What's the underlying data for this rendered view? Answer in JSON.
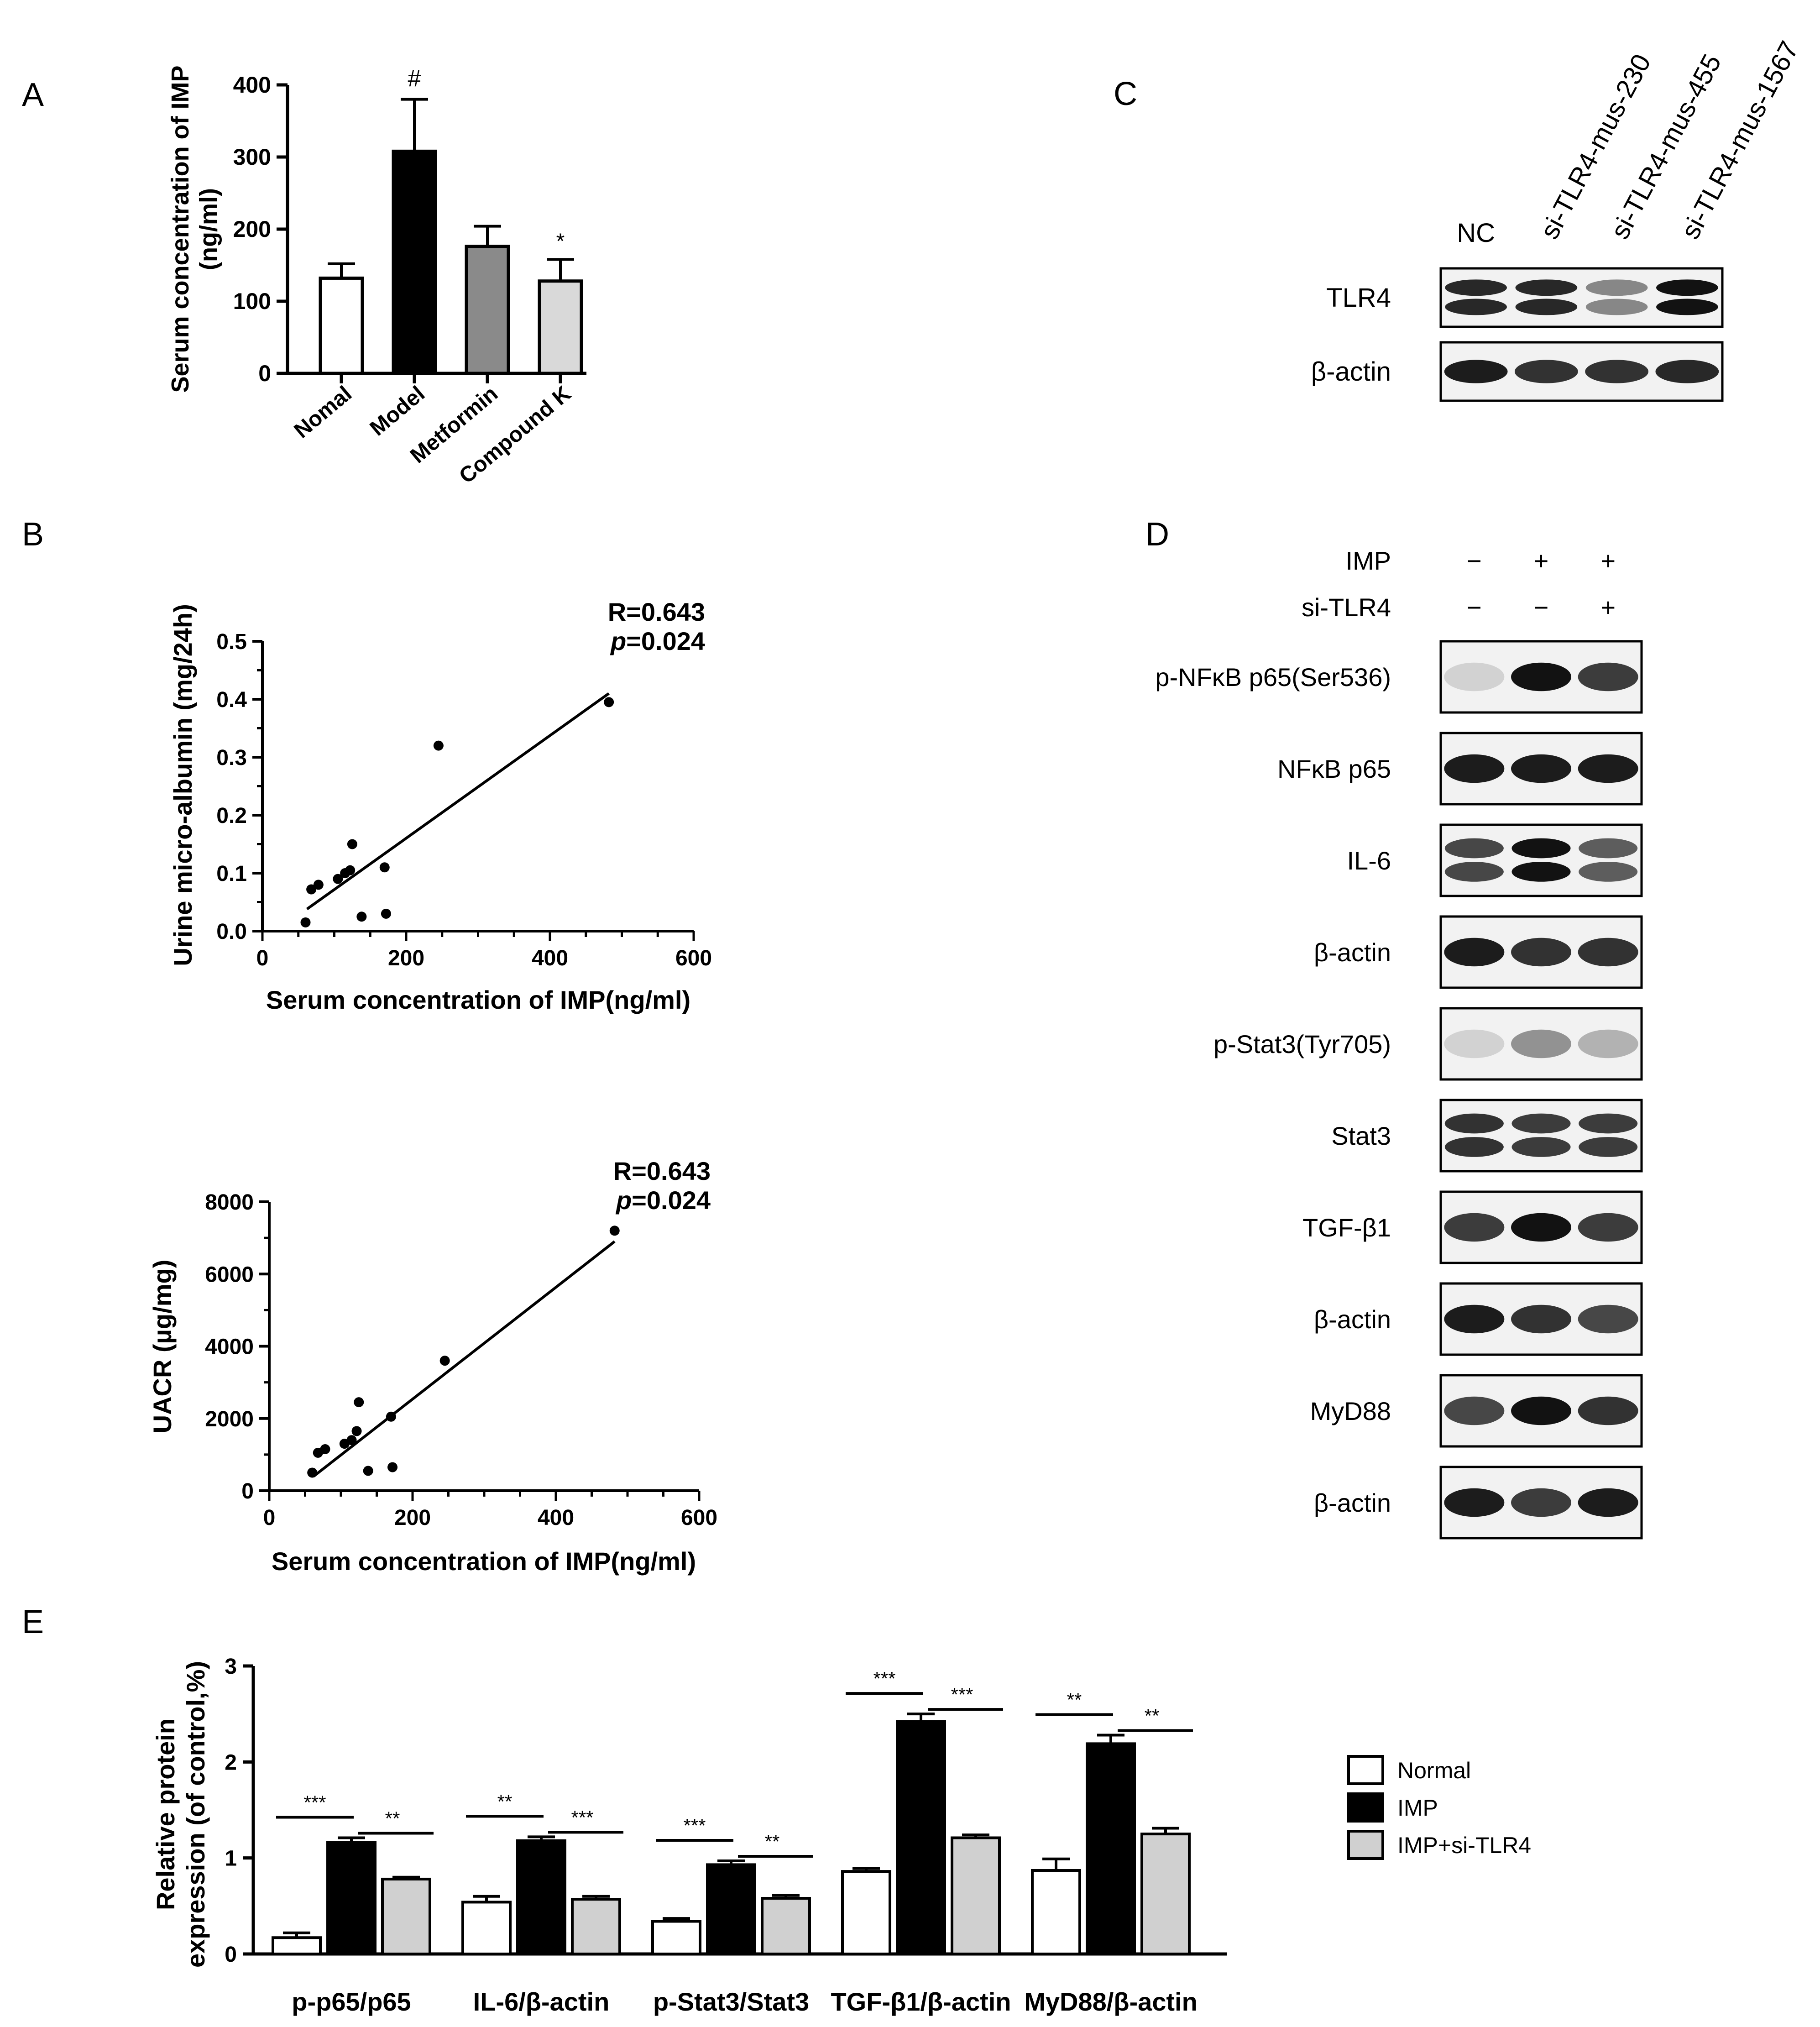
{
  "panel_labels": {
    "A": "A",
    "B": "B",
    "C": "C",
    "D": "D",
    "E": "E"
  },
  "chart_data": [
    {
      "id": "A",
      "type": "bar",
      "categories": [
        "Nomal",
        "Model",
        "Metformin",
        "Compound K"
      ],
      "values": [
        132,
        308,
        176,
        128
      ],
      "errors": [
        20,
        72,
        28,
        30
      ],
      "colors": [
        "#ffffff",
        "#000000",
        "#8a8a8a",
        "#d9d9d9"
      ],
      "significance": [
        "",
        "#",
        "",
        "*"
      ],
      "ylabel": "Serum concentration of IMP",
      "ylabel2": "(ng/ml)",
      "ylim": [
        0,
        400
      ],
      "yticks": [
        0,
        100,
        200,
        300,
        400
      ]
    },
    {
      "id": "B1",
      "type": "scatter",
      "x": [
        60,
        68,
        78,
        105,
        115,
        122,
        125,
        138,
        170,
        172,
        245,
        482
      ],
      "y": [
        0.015,
        0.072,
        0.08,
        0.09,
        0.1,
        0.105,
        0.15,
        0.025,
        0.11,
        0.03,
        0.32,
        0.395
      ],
      "fit": [
        [
          62,
          0.038
        ],
        [
          482,
          0.41
        ]
      ],
      "xlabel": "Serum concentration of IMP(ng/ml)",
      "ylabel": "Urine micro-albumin (mg/24h)",
      "xlim": [
        0,
        600
      ],
      "ylim": [
        0,
        0.5
      ],
      "xticks": [
        0,
        200,
        400,
        600
      ],
      "xtick_labels": [
        "0",
        "200",
        "400",
        "600"
      ],
      "yticks": [
        0,
        0.1,
        0.2,
        0.3,
        0.4,
        0.5
      ],
      "ytick_labels": [
        "0.0",
        "0.1",
        "0.2",
        "0.3",
        "0.4",
        "0.5"
      ],
      "annotation_r": "R=0.643",
      "annotation_p_label": "p",
      "annotation_p_value": "=0.024"
    },
    {
      "id": "B2",
      "type": "scatter",
      "x": [
        60,
        68,
        78,
        105,
        115,
        122,
        125,
        138,
        170,
        172,
        245,
        482
      ],
      "y": [
        500,
        1050,
        1150,
        1300,
        1400,
        1650,
        2450,
        550,
        2050,
        650,
        3600,
        7200
      ],
      "fit": [
        [
          62,
          400
        ],
        [
          482,
          6900
        ]
      ],
      "xlabel": "Serum concentration of IMP(ng/ml)",
      "ylabel": "UACR (µg/mg)",
      "xlim": [
        0,
        600
      ],
      "ylim": [
        0,
        8000
      ],
      "xticks": [
        0,
        200,
        400,
        600
      ],
      "xtick_labels": [
        "0",
        "200",
        "400",
        "600"
      ],
      "yticks": [
        0,
        2000,
        4000,
        6000,
        8000
      ],
      "ytick_labels": [
        "0",
        "2000",
        "4000",
        "6000",
        "8000"
      ],
      "annotation_r": "R=0.643",
      "annotation_p_label": "p",
      "annotation_p_value": "=0.024"
    },
    {
      "id": "E",
      "type": "bar",
      "categories": [
        "p-p65/p65",
        "IL-6/β-actin",
        "p-Stat3/Stat3",
        "TGF-β1/β-actin",
        "MyD88/β-actin"
      ],
      "series": [
        {
          "name": "Normal",
          "color": "#ffffff",
          "values": [
            0.17,
            0.54,
            0.34,
            0.86,
            0.87
          ],
          "errors": [
            0.05,
            0.06,
            0.03,
            0.03,
            0.12
          ]
        },
        {
          "name": "IMP",
          "color": "#000000",
          "values": [
            1.16,
            1.18,
            0.93,
            2.42,
            2.19
          ],
          "errors": [
            0.05,
            0.04,
            0.04,
            0.08,
            0.09
          ]
        },
        {
          "name": "IMP+si-TLR4",
          "color": "#d0d0d0",
          "values": [
            0.78,
            0.57,
            0.58,
            1.21,
            1.25
          ],
          "errors": [
            0.02,
            0.03,
            0.03,
            0.03,
            0.06
          ]
        }
      ],
      "significance": [
        [
          "***",
          "**"
        ],
        [
          "**",
          "***"
        ],
        [
          "***",
          "**"
        ],
        [
          "***",
          "***"
        ],
        [
          "**",
          "**"
        ]
      ],
      "ylabel": "Relative protein",
      "ylabel2": "expression (of control,%)",
      "ylim": [
        0,
        3
      ],
      "yticks": [
        0,
        1,
        2,
        3
      ]
    }
  ],
  "blot_c": {
    "lane_labels": [
      "NC",
      "si-TLR4-mus-230",
      "si-TLR4-mus-455",
      "si-TLR4-mus-1567"
    ],
    "rows": [
      {
        "label": "TLR4",
        "intensity": [
          0.9,
          0.9,
          0.45,
          1.0
        ],
        "double": true
      },
      {
        "label": "β-actin",
        "intensity": [
          0.95,
          0.85,
          0.85,
          0.9
        ],
        "double": false
      }
    ]
  },
  "blot_d": {
    "conditions": [
      {
        "name": "IMP",
        "values": [
          "−",
          "+",
          "+"
        ]
      },
      {
        "name": "si-TLR4",
        "values": [
          "−",
          "−",
          "+"
        ]
      }
    ],
    "rows": [
      {
        "label": "p-NFκB p65(Ser536)",
        "intensity": [
          0.1,
          1.0,
          0.8
        ],
        "double": false
      },
      {
        "label": "NFκB p65",
        "intensity": [
          0.95,
          0.95,
          0.95
        ],
        "double": false
      },
      {
        "label": "IL-6",
        "intensity": [
          0.75,
          1.0,
          0.65
        ],
        "double": true
      },
      {
        "label": "β-actin",
        "intensity": [
          0.95,
          0.85,
          0.85
        ],
        "double": false
      },
      {
        "label": "p-Stat3(Tyr705)",
        "intensity": [
          0.1,
          0.4,
          0.25
        ],
        "double": false
      },
      {
        "label": "Stat3",
        "intensity": [
          0.85,
          0.8,
          0.8
        ],
        "double": true
      },
      {
        "label": "TGF-β1",
        "intensity": [
          0.8,
          1.0,
          0.8
        ],
        "double": false
      },
      {
        "label": "β-actin",
        "intensity": [
          0.95,
          0.85,
          0.75
        ],
        "double": false
      },
      {
        "label": "MyD88",
        "intensity": [
          0.75,
          1.0,
          0.85
        ],
        "double": false
      },
      {
        "label": "β-actin",
        "intensity": [
          0.95,
          0.8,
          0.95
        ],
        "double": false
      }
    ]
  },
  "legend_e": [
    "Normal",
    "IMP",
    "IMP+si-TLR4"
  ]
}
